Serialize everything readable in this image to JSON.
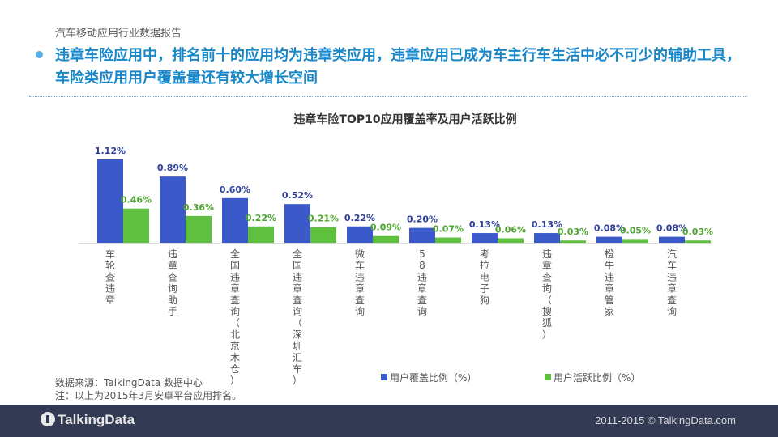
{
  "header": {
    "subtitle": "汽车移动应用行业数据报告",
    "headline": "违章车险应用中，排名前十的应用均为违章类应用，违章应用已成为车主行车生活中必不可少的辅助工具，车险类应用用户覆盖量还有较大增长空间"
  },
  "chart_data": {
    "type": "bar",
    "title": "违章车险TOP10应用覆盖率及用户活跃比例",
    "categories": [
      "车轮查违章",
      "违章查询助手",
      "全国违章查询（北京木仓）",
      "全国违章查询（深圳汇车）",
      "微车违章查询",
      "58违章查询",
      "考拉电子狗",
      "违章查询（搜狐）",
      "橙牛违章管家",
      "汽车违章查询"
    ],
    "series": [
      {
        "name": "用户覆盖比例（%）",
        "color": "#3c59c9",
        "values": [
          1.12,
          0.89,
          0.6,
          0.52,
          0.22,
          0.2,
          0.13,
          0.13,
          0.08,
          0.08
        ],
        "labels": [
          "1.12%",
          "0.89%",
          "0.60%",
          "0.52%",
          "0.22%",
          "0.20%",
          "0.13%",
          "0.13%",
          "0.08%",
          "0.08%"
        ]
      },
      {
        "name": "用户活跃比例（%）",
        "color": "#5fbf3e",
        "values": [
          0.46,
          0.36,
          0.22,
          0.21,
          0.09,
          0.07,
          0.06,
          0.03,
          0.05,
          0.03
        ],
        "labels": [
          "0.46%",
          "0.36%",
          "0.22%",
          "0.21%",
          "0.09%",
          "0.07%",
          "0.06%",
          "0.03%",
          "0.05%",
          "0.03%"
        ]
      }
    ],
    "ylim": [
      0,
      1.12
    ]
  },
  "source": {
    "line1": "数据来源：TalkingData 数据中心",
    "line2": "注：以上为2015年3月安卓平台应用排名。"
  },
  "footer": {
    "logo": "TalkingData",
    "copyright": "2011-2015 © TalkingData.com"
  }
}
